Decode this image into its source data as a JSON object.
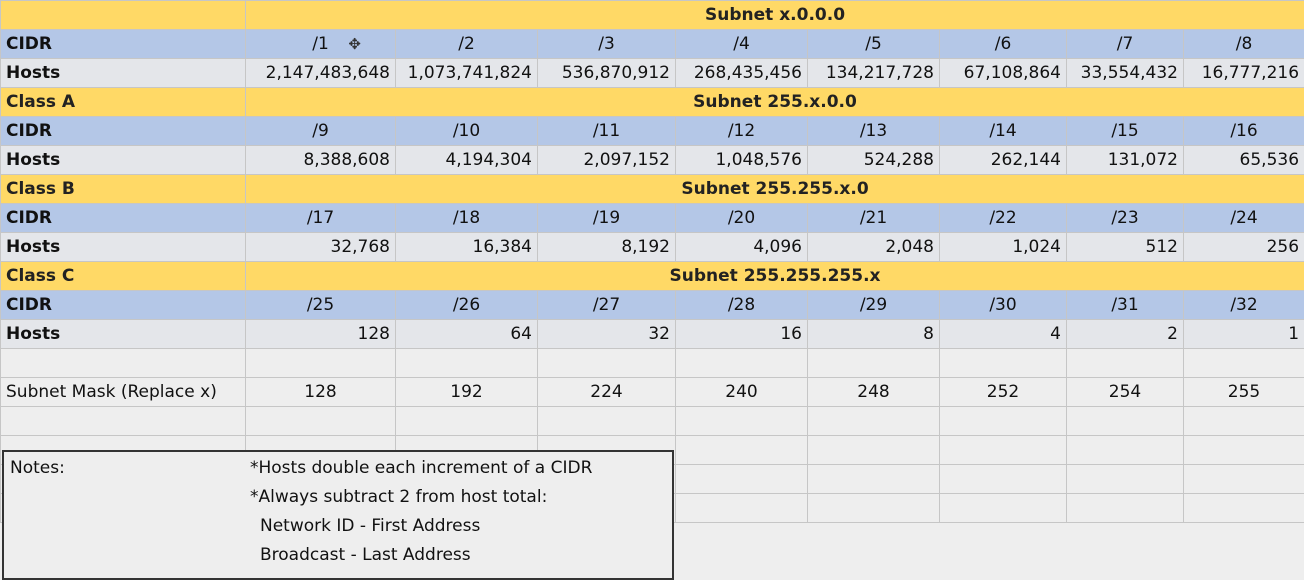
{
  "labels": {
    "cidr": "CIDR",
    "hosts": "Hosts"
  },
  "header_band": {
    "label": "",
    "subnet": "Subnet x.0.0.0"
  },
  "blocks": [
    {
      "cidr": [
        "/1",
        "/2",
        "/3",
        "/4",
        "/5",
        "/6",
        "/7",
        "/8"
      ],
      "hosts": [
        "2,147,483,648",
        "1,073,741,824",
        "536,870,912",
        "268,435,456",
        "134,217,728",
        "67,108,864",
        "33,554,432",
        "16,777,216"
      ]
    },
    {
      "class": "Class A",
      "subnet": "Subnet 255.x.0.0",
      "cidr": [
        "/9",
        "/10",
        "/11",
        "/12",
        "/13",
        "/14",
        "/15",
        "/16"
      ],
      "hosts": [
        "8,388,608",
        "4,194,304",
        "2,097,152",
        "1,048,576",
        "524,288",
        "262,144",
        "131,072",
        "65,536"
      ]
    },
    {
      "class": "Class B",
      "subnet": "Subnet 255.255.x.0",
      "cidr": [
        "/17",
        "/18",
        "/19",
        "/20",
        "/21",
        "/22",
        "/23",
        "/24"
      ],
      "hosts": [
        "32,768",
        "16,384",
        "8,192",
        "4,096",
        "2,048",
        "1,024",
        "512",
        "256"
      ]
    },
    {
      "class": "Class C",
      "subnet": "Subnet 255.255.255.x",
      "cidr": [
        "/25",
        "/26",
        "/27",
        "/28",
        "/29",
        "/30",
        "/31",
        "/32"
      ],
      "hosts": [
        "128",
        "64",
        "32",
        "16",
        "8",
        "4",
        "2",
        "1"
      ]
    }
  ],
  "mask": {
    "label": "Subnet Mask (Replace x)",
    "values": [
      "128",
      "192",
      "224",
      "240",
      "248",
      "252",
      "254",
      "255"
    ]
  },
  "notes": {
    "title": "Notes:",
    "lines": [
      "*Hosts double each increment of a CIDR",
      "*Always subtract 2 from host total:",
      "Network ID - First Address",
      "Broadcast - Last Address"
    ]
  },
  "cursor_icon": "move-cursor-icon"
}
